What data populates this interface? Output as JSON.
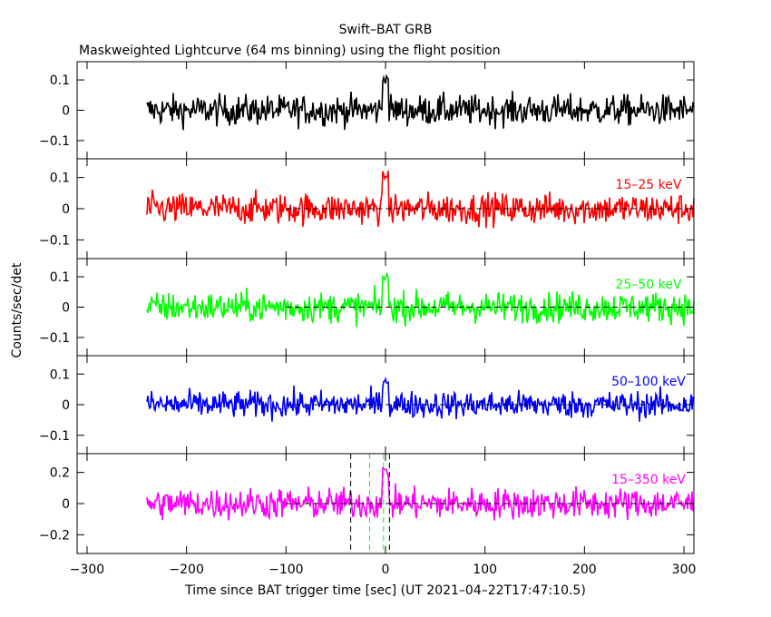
{
  "title": "Swift–BAT GRB",
  "subtitle": "Maskweighted Lightcurve (64 ms binning) using the flight position",
  "ylabel": "Counts/sec/det",
  "xlabel": "Time since BAT trigger time [sec] (UT 2021–04–22T17:47:10.5)",
  "chart_data": {
    "type": "line",
    "x_range": [
      -310,
      310
    ],
    "x_ticks": [
      -300,
      -200,
      -100,
      0,
      100,
      200,
      300
    ],
    "x_tick_labels": [
      "−300",
      "−200",
      "−100",
      "0",
      "100",
      "200",
      "300"
    ],
    "data_x_range": [
      -240,
      310
    ],
    "bin_width_sec": 0.064,
    "zero_line_start": -100,
    "panels": [
      {
        "color": "#000000",
        "band_label": "",
        "ylim": [
          -0.16,
          0.16
        ],
        "y_ticks": [
          -0.1,
          0,
          0.1
        ],
        "y_tick_labels": [
          "−0.1",
          "0",
          "0.1"
        ],
        "noise_sigma": 0.045,
        "peak_value": 0.15,
        "zero_line": false,
        "markers": []
      },
      {
        "color": "#ff0000",
        "band_label": "15–25 keV",
        "ylim": [
          -0.16,
          0.16
        ],
        "y_ticks": [
          -0.1,
          0,
          0.1
        ],
        "y_tick_labels": [
          "−0.1",
          "0",
          "0.1"
        ],
        "noise_sigma": 0.045,
        "peak_value": 0.15,
        "zero_line": true,
        "markers": []
      },
      {
        "color": "#00ff00",
        "band_label": "25–50 keV",
        "ylim": [
          -0.16,
          0.16
        ],
        "y_ticks": [
          -0.1,
          0,
          0.1
        ],
        "y_tick_labels": [
          "−0.1",
          "0",
          "0.1"
        ],
        "noise_sigma": 0.045,
        "peak_value": 0.14,
        "zero_line": true,
        "markers": []
      },
      {
        "color": "#0000ff",
        "band_label": "50–100 keV",
        "ylim": [
          -0.16,
          0.16
        ],
        "y_ticks": [
          -0.1,
          0,
          0.1
        ],
        "y_tick_labels": [
          "−0.1",
          "0",
          "0.1"
        ],
        "noise_sigma": 0.04,
        "peak_value": 0.11,
        "zero_line": true,
        "markers": []
      },
      {
        "color": "#ff00ff",
        "band_label": "15–350 keV",
        "ylim": [
          -0.32,
          0.32
        ],
        "y_ticks": [
          -0.2,
          0,
          0.2
        ],
        "y_tick_labels": [
          "−0.2",
          "0",
          "0.2"
        ],
        "noise_sigma": 0.09,
        "peak_value": 0.3,
        "zero_line": true,
        "markers": [
          {
            "x": -35,
            "color": "#000000"
          },
          {
            "x": -16,
            "color": "#00ff00"
          },
          {
            "x": -2,
            "color": "#00ff00"
          },
          {
            "x": 4,
            "color": "#000000"
          }
        ]
      }
    ]
  }
}
